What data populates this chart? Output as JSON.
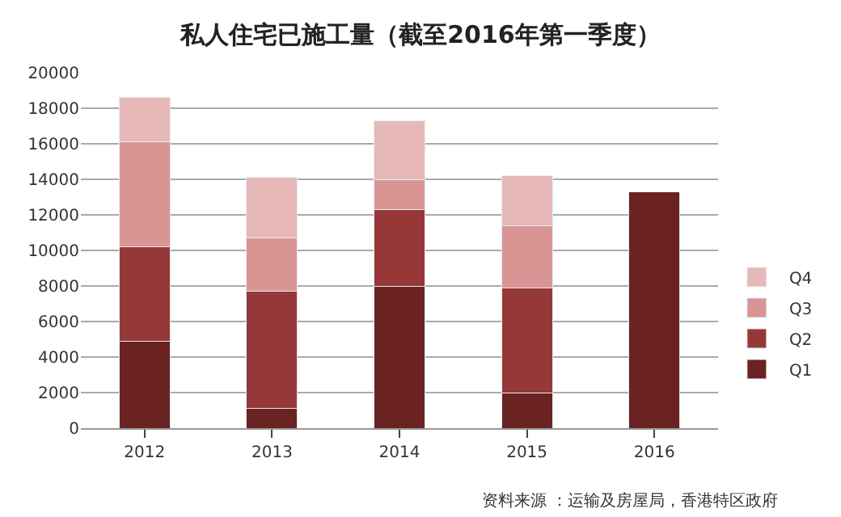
{
  "chart_data": {
    "type": "bar",
    "title": "私人住宅已施工量（截至2016年第一季度）",
    "categories": [
      "2012",
      "2013",
      "2014",
      "2015",
      "2016"
    ],
    "series": [
      {
        "name": "Q1",
        "color": "#6b2222",
        "values": [
          4900,
          1100,
          8000,
          2000,
          13300
        ]
      },
      {
        "name": "Q2",
        "color": "#963838",
        "values": [
          5300,
          6600,
          4300,
          5900,
          null
        ]
      },
      {
        "name": "Q3",
        "color": "#d99594",
        "values": [
          5900,
          3000,
          1700,
          3500,
          null
        ]
      },
      {
        "name": "Q4",
        "color": "#e6b9b8",
        "values": [
          2500,
          3400,
          3300,
          2800,
          null
        ]
      }
    ],
    "stacked": true,
    "ylim": [
      0,
      20000
    ],
    "yticks": [
      0,
      2000,
      4000,
      6000,
      8000,
      10000,
      12000,
      14000,
      16000,
      18000,
      20000
    ],
    "grid": "y",
    "legend": "right",
    "annotations": [
      "资料来源 ：运输及房屋局，香港特区政府"
    ]
  }
}
